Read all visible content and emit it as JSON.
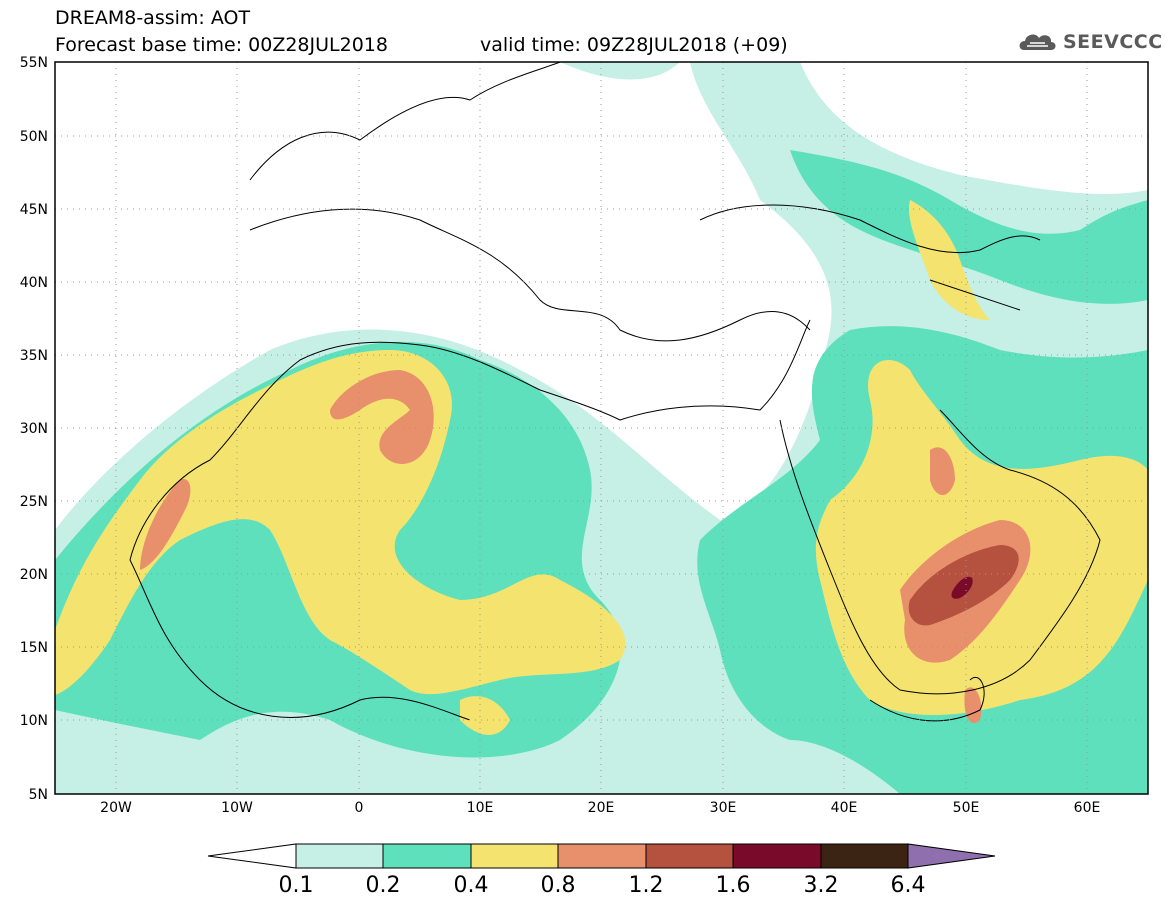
{
  "header": {
    "line1": "DREAM8-assim: AOT",
    "line2": "Forecast base time: 00Z28JUL2018",
    "line3": "valid time: 09Z28JUL2018 (+09)",
    "logo_text": "SEEVCCC"
  },
  "map": {
    "lon_range": [
      -25,
      65
    ],
    "lat_range": [
      5,
      55
    ],
    "lat_labels": [
      "55N",
      "50N",
      "45N",
      "40N",
      "35N",
      "30N",
      "25N",
      "20N",
      "15N",
      "10N",
      "5N"
    ],
    "lon_labels": [
      "20W",
      "10W",
      "0",
      "10E",
      "20E",
      "30E",
      "40E",
      "50E",
      "60E"
    ],
    "grid": "dotted"
  },
  "colorbar": {
    "bins": [
      {
        "color": "#c6efe6"
      },
      {
        "color": "#5fe0bd"
      },
      {
        "color": "#f4e46f"
      },
      {
        "color": "#e8906c"
      },
      {
        "color": "#b5513f"
      },
      {
        "color": "#7a0a2a"
      },
      {
        "color": "#3b2414"
      }
    ],
    "low_color": "#ffffff",
    "high_color": "#8f6fae",
    "labels": [
      "0.1",
      "0.2",
      "0.4",
      "0.8",
      "1.2",
      "1.6",
      "3.2",
      "6.4"
    ]
  },
  "colors": {
    "level1": "#c6efe6",
    "level2": "#5fe0bd",
    "level3": "#f4e46f",
    "level4": "#e8906c",
    "level5": "#b5513f",
    "level6": "#7a0a2a"
  }
}
